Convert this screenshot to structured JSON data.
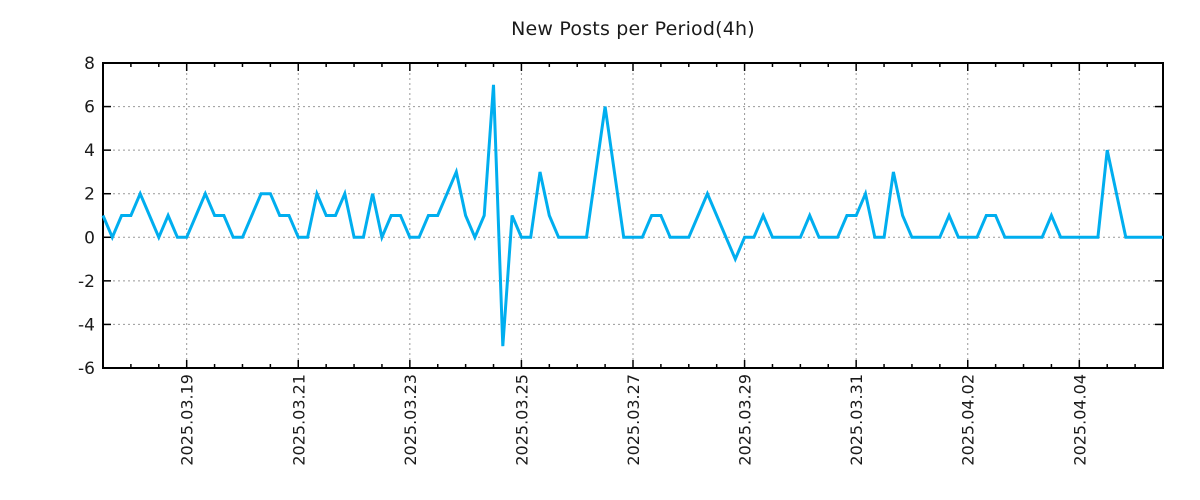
{
  "title": "New Posts per Period(4h)",
  "colors": {
    "line": "#00AEEF",
    "grid": "#999999",
    "axis": "#000000",
    "text": "#1a1a1a",
    "background": "#ffffff"
  },
  "chart_data": {
    "type": "line",
    "title": "New Posts per Period(4h)",
    "x_interval_hours": 4,
    "x_tick_labels": [
      "2025.03.19",
      "2025.03.21",
      "2025.03.23",
      "2025.03.25",
      "2025.03.27",
      "2025.03.29",
      "2025.03.31",
      "2025.04.02",
      "2025.04.04"
    ],
    "x_tick_indices": [
      9,
      21,
      33,
      45,
      57,
      69,
      81,
      93,
      105
    ],
    "x_minor_tick_every": 3,
    "y_ticks": [
      -6,
      -4,
      -2,
      0,
      2,
      4,
      6,
      8
    ],
    "ylim": [
      -6,
      8
    ],
    "grid": true,
    "legend": "none",
    "values": [
      1,
      0,
      1,
      1,
      2,
      1,
      0,
      1,
      0,
      0,
      1,
      2,
      1,
      1,
      0,
      0,
      1,
      2,
      2,
      1,
      1,
      0,
      0,
      2,
      1,
      1,
      2,
      0,
      0,
      2,
      0,
      1,
      1,
      0,
      0,
      1,
      1,
      2,
      3,
      1,
      0,
      1,
      7,
      -5,
      1,
      0,
      0,
      3,
      1,
      0,
      0,
      0,
      0,
      3,
      6,
      3,
      0,
      0,
      0,
      1,
      1,
      0,
      0,
      0,
      1,
      2,
      1,
      0,
      -1,
      0,
      0,
      1,
      0,
      0,
      0,
      0,
      1,
      0,
      0,
      0,
      1,
      1,
      2,
      0,
      0,
      3,
      1,
      0,
      0,
      0,
      0,
      1,
      0,
      0,
      0,
      1,
      1,
      0,
      0,
      0,
      0,
      0,
      1,
      0,
      0,
      0,
      0,
      0,
      4,
      2,
      0,
      0,
      0,
      0,
      0
    ]
  }
}
